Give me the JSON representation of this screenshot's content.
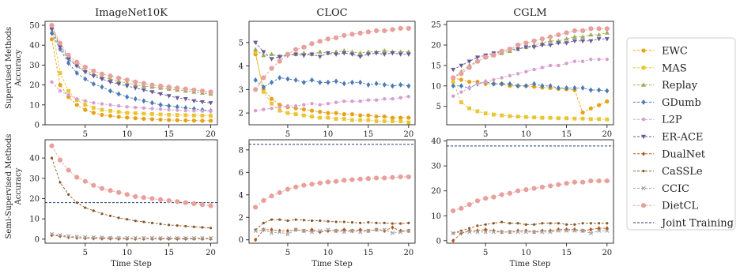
{
  "colors": {
    "EWC": "#e6a117",
    "MAS": "#e9c534",
    "Replay": "#9aab5a",
    "GDumb": "#4a7bb5",
    "L2P": "#d79ed0",
    "ER-ACE": "#6a5a9c",
    "DualNet": "#b5561b",
    "CaSSLe": "#8b5a2b",
    "CCIC": "#a3a3a3",
    "DietCL": "#e8a09c",
    "Joint Training": "#1f3f6e"
  },
  "legend": [
    "EWC",
    "MAS",
    "Replay",
    "GDumb",
    "L2P",
    "ER-ACE",
    "DualNet",
    "CaSSLe",
    "CCIC",
    "DietCL",
    "Joint Training"
  ],
  "row_labels": [
    "Supervised Methods\nAccuracy",
    "Semi-Supervised Methods\nAccuracy"
  ],
  "chart_data": [
    {
      "type": "line",
      "title": "ImageNet10K",
      "row": 0,
      "col": 0,
      "ylim": [
        0,
        52
      ],
      "yticks": [
        0,
        10,
        20,
        30,
        40,
        50
      ],
      "xlim": [
        0.2,
        20.8
      ],
      "xticks": [
        5,
        10,
        15,
        20
      ],
      "xlabel": "",
      "series": [
        {
          "name": "EWC",
          "values": [
            43,
            20,
            14,
            10,
            7.5,
            6,
            5,
            4.5,
            4,
            3.6,
            3.3,
            3,
            2.8,
            2.6,
            2.4,
            2.3,
            2.2,
            2.1,
            2,
            2
          ]
        },
        {
          "name": "MAS",
          "values": [
            50,
            26,
            17,
            12.5,
            10,
            8.5,
            7.5,
            7,
            6.5,
            6,
            5.8,
            5.6,
            5.4,
            5.2,
            5,
            4.9,
            4.8,
            4.7,
            4.6,
            4.5
          ]
        },
        {
          "name": "Replay",
          "values": [
            49,
            40,
            34,
            30,
            27.5,
            25.5,
            24,
            23,
            22,
            21,
            20.2,
            19.5,
            19,
            18.5,
            18,
            17.5,
            17,
            16.5,
            16,
            15.5
          ]
        },
        {
          "name": "GDumb",
          "values": [
            46,
            38,
            31,
            26,
            23,
            20.5,
            19,
            17,
            15.5,
            14,
            13,
            12,
            11,
            10,
            9.5,
            9,
            8.5,
            8,
            7.5,
            7
          ]
        },
        {
          "name": "L2P",
          "values": [
            21.5,
            17,
            15,
            13,
            12,
            11,
            10.5,
            10,
            9.5,
            9,
            8.7,
            8.4,
            8.1,
            7.8,
            7.5,
            7.3,
            7.1,
            7,
            6.9,
            6.8
          ]
        },
        {
          "name": "ER-ACE",
          "values": [
            48,
            39,
            33,
            29.5,
            26.5,
            24.5,
            23,
            21.5,
            20.5,
            19.5,
            18.5,
            17.5,
            16.5,
            15.5,
            14.5,
            13.5,
            13,
            12,
            11.5,
            11
          ]
        },
        {
          "name": "DietCL",
          "values": [
            50,
            41,
            35,
            31.5,
            29,
            27,
            25.5,
            24.5,
            23.5,
            22.5,
            21.5,
            20.8,
            20,
            19.5,
            19,
            18.5,
            18,
            17.5,
            17,
            16.5
          ]
        }
      ]
    },
    {
      "type": "line",
      "title": "CLOC",
      "row": 0,
      "col": 1,
      "ylim": [
        1.5,
        5.9
      ],
      "yticks": [
        2,
        3,
        4,
        5
      ],
      "xlim": [
        0.2,
        20.8
      ],
      "xticks": [
        5,
        10,
        15,
        20
      ],
      "xlabel": "",
      "series": [
        {
          "name": "EWC",
          "values": [
            4.5,
            3,
            2.6,
            2.35,
            2.25,
            2.2,
            2.15,
            2.1,
            2.05,
            2,
            2,
            1.95,
            1.95,
            1.9,
            1.9,
            1.85,
            1.85,
            1.8,
            1.8,
            1.8
          ]
        },
        {
          "name": "MAS",
          "values": [
            4.6,
            2.9,
            2.4,
            2.1,
            2,
            1.95,
            1.9,
            1.85,
            1.8,
            1.8,
            1.75,
            1.75,
            1.7,
            1.7,
            1.7,
            1.65,
            1.65,
            1.65,
            1.65,
            1.6
          ]
        },
        {
          "name": "Replay",
          "values": [
            4.7,
            4.45,
            4.5,
            4.4,
            4.5,
            4.5,
            4.55,
            4.5,
            4.6,
            4.55,
            4.6,
            4.65,
            4.6,
            4.55,
            4.6,
            4.6,
            4.65,
            4.6,
            4.6,
            4.6
          ]
        },
        {
          "name": "GDumb",
          "values": [
            3.4,
            3.1,
            3.3,
            3.5,
            3.45,
            3.4,
            3.3,
            3.4,
            3.3,
            3.3,
            3.35,
            3.25,
            3.3,
            3.3,
            3.2,
            3.25,
            3.2,
            3.15,
            3.2,
            3.15
          ]
        },
        {
          "name": "L2P",
          "values": [
            2.1,
            2.15,
            2.2,
            2.25,
            2.3,
            2.3,
            2.35,
            2.4,
            2.35,
            2.4,
            2.45,
            2.5,
            2.5,
            2.5,
            2.55,
            2.55,
            2.6,
            2.6,
            2.65,
            2.7
          ]
        },
        {
          "name": "ER-ACE",
          "values": [
            5,
            4.6,
            4.3,
            4.4,
            4.45,
            4.5,
            4.45,
            4.5,
            4.4,
            4.55,
            4.5,
            4.55,
            4.5,
            4.4,
            4.5,
            4.55,
            4.5,
            4.55,
            4.5,
            4.5
          ]
        },
        {
          "name": "DietCL",
          "values": [
            3,
            3.5,
            3.9,
            4.2,
            4.5,
            4.7,
            4.8,
            4.95,
            5.05,
            5.15,
            5.2,
            5.3,
            5.35,
            5.4,
            5.45,
            5.5,
            5.5,
            5.55,
            5.6,
            5.6
          ]
        }
      ]
    },
    {
      "type": "line",
      "title": "CGLM",
      "row": 0,
      "col": 2,
      "ylim": [
        0.5,
        25.8
      ],
      "yticks": [
        5,
        10,
        15,
        20,
        25
      ],
      "xlim": [
        0.2,
        20.8
      ],
      "xticks": [
        5,
        10,
        15,
        20
      ],
      "xlabel": "",
      "series": [
        {
          "name": "EWC",
          "values": [
            12,
            11.5,
            11,
            11,
            10.5,
            10.5,
            10.5,
            10,
            10,
            10,
            9.8,
            9.6,
            9.5,
            9.3,
            9.2,
            9,
            3.5,
            4.5,
            5.3,
            6.2
          ]
        },
        {
          "name": "MAS",
          "values": [
            11,
            6,
            4.5,
            3.8,
            3.3,
            3,
            2.8,
            2.6,
            2.5,
            2.4,
            2.3,
            2.2,
            2.2,
            2.1,
            2.1,
            2,
            2,
            1.9,
            1.9,
            1.8
          ]
        },
        {
          "name": "Replay",
          "values": [
            12,
            13.5,
            15,
            16,
            17,
            17.5,
            18,
            18.5,
            19,
            19.5,
            20,
            20.5,
            21,
            21,
            21.5,
            22,
            22,
            22.5,
            22.5,
            23
          ]
        },
        {
          "name": "GDumb",
          "values": [
            10,
            10,
            9.5,
            10.5,
            11,
            10.5,
            10.5,
            10.5,
            10,
            10,
            10.5,
            10,
            10,
            9.5,
            9.5,
            9.5,
            9.5,
            9,
            9,
            8.8
          ]
        },
        {
          "name": "L2P",
          "values": [
            7.5,
            8.5,
            9.5,
            10.5,
            11,
            11.5,
            12,
            12.5,
            13,
            13.5,
            14,
            14.5,
            15,
            15,
            15.5,
            16,
            16,
            16.5,
            16.5,
            16.5
          ]
        },
        {
          "name": "ER-ACE",
          "values": [
            14,
            15,
            16,
            17,
            17.5,
            18,
            18.5,
            19,
            19,
            19.5,
            19.5,
            20,
            20,
            20.5,
            20.5,
            21,
            21,
            21,
            21.5,
            21.5
          ]
        },
        {
          "name": "DietCL",
          "values": [
            12,
            13,
            14.5,
            16,
            17,
            17.5,
            18.5,
            19,
            20,
            20.5,
            21,
            21.5,
            22,
            22.5,
            23,
            23.5,
            23.5,
            24,
            24,
            24
          ]
        }
      ]
    },
    {
      "type": "line",
      "title": "",
      "row": 1,
      "col": 0,
      "ylim": [
        -2,
        49
      ],
      "yticks": [
        0,
        10,
        20,
        30,
        40
      ],
      "xlim": [
        0.2,
        20.8
      ],
      "xticks": [
        5,
        10,
        15,
        20
      ],
      "xlabel": "Time Step",
      "hline": {
        "name": "Joint Training",
        "value": 18
      },
      "series": [
        {
          "name": "DualNet",
          "values": [
            2,
            1.5,
            1,
            0.7,
            0.5,
            0.4,
            0.3,
            0.3,
            0.2,
            0.2,
            0.2,
            0.2,
            0.2,
            0.2,
            0.2,
            0.2,
            0.2,
            0.2,
            0.2,
            0.2
          ]
        },
        {
          "name": "CaSSLe",
          "values": [
            40,
            28,
            22,
            18,
            15.5,
            14,
            12.5,
            11.5,
            10.5,
            9.8,
            9,
            8.5,
            8,
            7.5,
            7,
            6.7,
            6.4,
            6.1,
            5.8,
            5.5
          ]
        },
        {
          "name": "CCIC",
          "values": [
            2.5,
            2,
            1.5,
            1.2,
            1,
            0.9,
            0.8,
            0.7,
            0.7,
            0.6,
            0.6,
            0.6,
            0.6,
            0.5,
            0.5,
            0.5,
            0.5,
            0.5,
            0.5,
            0.5
          ]
        },
        {
          "name": "DietCL",
          "values": [
            46,
            39,
            34,
            30.5,
            28.5,
            26.5,
            25,
            24,
            23,
            22,
            21,
            20.5,
            20,
            19.5,
            19,
            18.5,
            18,
            17.5,
            17,
            16.5
          ]
        }
      ]
    },
    {
      "type": "line",
      "title": "",
      "row": 1,
      "col": 1,
      "ylim": [
        -0.3,
        8.9
      ],
      "yticks": [
        0,
        2,
        4,
        6,
        8
      ],
      "xlim": [
        0.2,
        20.8
      ],
      "xticks": [
        5,
        10,
        15,
        20
      ],
      "xlabel": "Time Step",
      "hline": {
        "name": "Joint Training",
        "value": 8.5
      },
      "series": [
        {
          "name": "DualNet",
          "values": [
            0,
            0.9,
            0.9,
            0.8,
            0.8,
            0.9,
            0.8,
            0.9,
            0.7,
            0.8,
            0.8,
            0.9,
            0.8,
            0.9,
            0.8,
            0.9,
            0.8,
            1.1,
            0.8,
            0.8
          ]
        },
        {
          "name": "CaSSLe",
          "values": [
            0.9,
            1.5,
            1.8,
            1.8,
            1.7,
            1.8,
            1.75,
            1.7,
            1.7,
            1.65,
            1.6,
            1.6,
            1.55,
            1.5,
            1.55,
            1.5,
            1.5,
            1.45,
            1.45,
            1.5
          ]
        },
        {
          "name": "CCIC",
          "values": [
            0.8,
            0.9,
            0.6,
            0.7,
            0.5,
            0.9,
            0.8,
            0.7,
            0.8,
            0.9,
            0.8,
            0.7,
            0.8,
            0.7,
            0.8,
            0.9,
            0.9,
            0.6,
            0.7,
            0.8
          ]
        },
        {
          "name": "DietCL",
          "values": [
            2.9,
            3.5,
            3.9,
            4.2,
            4.5,
            4.7,
            4.85,
            4.95,
            5.05,
            5.15,
            5.2,
            5.3,
            5.35,
            5.4,
            5.45,
            5.5,
            5.5,
            5.55,
            5.6,
            5.6
          ]
        }
      ]
    },
    {
      "type": "line",
      "title": "",
      "row": 1,
      "col": 2,
      "ylim": [
        -1,
        40.5
      ],
      "yticks": [
        0,
        10,
        20,
        30,
        40
      ],
      "xlim": [
        0.2,
        20.8
      ],
      "xticks": [
        5,
        10,
        15,
        20
      ],
      "xlabel": "Time Step",
      "hline": {
        "name": "Joint Training",
        "value": 38
      },
      "series": [
        {
          "name": "DualNet",
          "values": [
            0,
            3,
            4,
            4,
            4.5,
            4,
            3.5,
            3.5,
            4,
            4,
            3.5,
            4,
            4,
            4.5,
            4.5,
            4.5,
            4,
            4.5,
            5,
            5
          ]
        },
        {
          "name": "CaSSLe",
          "values": [
            3,
            4,
            5,
            6,
            6.5,
            7,
            7.5,
            7,
            7,
            6.5,
            6.5,
            7,
            7,
            7,
            6.5,
            6.5,
            7,
            7,
            7,
            7
          ]
        },
        {
          "name": "CCIC",
          "values": [
            3,
            3.5,
            3.5,
            3.5,
            3.5,
            3.5,
            3.5,
            3.5,
            3.5,
            3.5,
            3.5,
            3.5,
            3.5,
            4,
            4,
            4,
            4,
            3,
            4,
            4
          ]
        },
        {
          "name": "DietCL",
          "values": [
            12,
            13,
            14.5,
            16,
            17,
            17.5,
            18.5,
            19,
            20,
            20.5,
            21,
            21.5,
            22,
            22.5,
            23,
            23.5,
            23.5,
            24,
            24,
            24
          ]
        }
      ]
    }
  ]
}
